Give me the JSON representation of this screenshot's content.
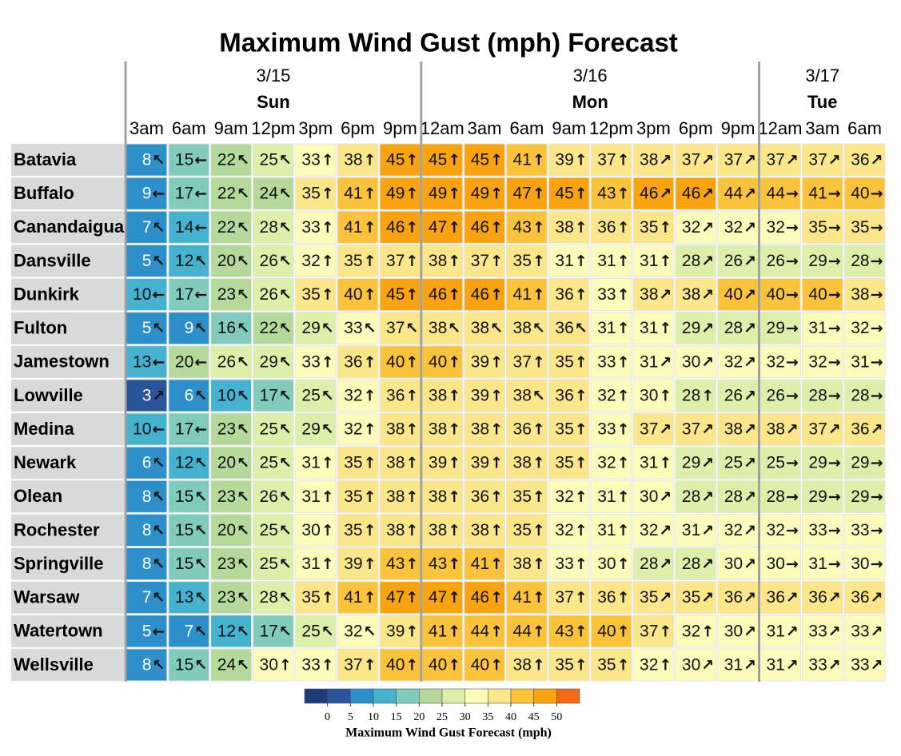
{
  "title": "Maximum Wind Gust (mph) Forecast",
  "days": [
    {
      "date": "3/15",
      "day": "Sun",
      "hours": [
        "3am",
        "6am",
        "9am",
        "12pm",
        "3pm",
        "6pm",
        "9pm"
      ]
    },
    {
      "date": "3/16",
      "day": "Mon",
      "hours": [
        "12am",
        "3am",
        "6am",
        "9am",
        "12pm",
        "3pm",
        "6pm",
        "9pm"
      ]
    },
    {
      "date": "3/17",
      "day": "Tue",
      "hours": [
        "12am",
        "3am",
        "6am"
      ]
    }
  ],
  "rows": [
    {
      "name": "Batavia",
      "values": [
        8,
        15,
        22,
        25,
        33,
        38,
        45,
        45,
        45,
        41,
        39,
        37,
        38,
        37,
        37,
        37,
        37,
        36
      ],
      "arrows": "↖←↖↖↑↑↑↑↑↑↑↑↗↗↗↗↗↗"
    },
    {
      "name": "Buffalo",
      "values": [
        9,
        17,
        22,
        24,
        35,
        41,
        49,
        49,
        49,
        47,
        45,
        43,
        46,
        46,
        44,
        44,
        41,
        40
      ],
      "arrows": "←←↖↖↑↑↑↑↑↑↑↑↗↗↗→→→"
    },
    {
      "name": "Canandaigua",
      "values": [
        7,
        14,
        22,
        28,
        33,
        41,
        46,
        47,
        46,
        43,
        38,
        36,
        35,
        32,
        32,
        32,
        35,
        35
      ],
      "arrows": "↖←↖↖↑↑↑↑↑↑↑↑↑↗↗→→→"
    },
    {
      "name": "Dansville",
      "values": [
        5,
        12,
        20,
        26,
        32,
        35,
        37,
        38,
        37,
        35,
        31,
        31,
        31,
        28,
        26,
        26,
        29,
        28
      ],
      "arrows": "↖↖↖↖↑↑↑↑↑↑↑↑↑↗↗→→→"
    },
    {
      "name": "Dunkirk",
      "values": [
        10,
        17,
        23,
        26,
        35,
        40,
        45,
        46,
        46,
        41,
        36,
        33,
        38,
        38,
        40,
        40,
        40,
        38
      ],
      "arrows": "←←↖↖↑↑↑↑↑↑↑↑↗↗↗→→→"
    },
    {
      "name": "Fulton",
      "values": [
        5,
        9,
        16,
        22,
        29,
        33,
        37,
        38,
        38,
        38,
        36,
        31,
        31,
        29,
        28,
        29,
        31,
        32
      ],
      "arrows": "↖↖↖↖↖↖↖↖↖↖↖↑↑↗↗→→→"
    },
    {
      "name": "Jamestown",
      "values": [
        13,
        20,
        26,
        29,
        33,
        36,
        40,
        40,
        39,
        37,
        35,
        33,
        31,
        30,
        32,
        32,
        32,
        31
      ],
      "arrows": "←←↖↖↑↑↑↑↑↑↑↑↗↗↗→→→"
    },
    {
      "name": "Lowville",
      "values": [
        3,
        6,
        10,
        17,
        25,
        32,
        36,
        38,
        39,
        38,
        36,
        32,
        30,
        28,
        26,
        26,
        28,
        28
      ],
      "arrows": "↗↖↖↖↖↑↑↑↑↖↑↑↑↑↗→→→"
    },
    {
      "name": "Medina",
      "values": [
        10,
        17,
        23,
        25,
        29,
        32,
        38,
        38,
        38,
        36,
        35,
        33,
        37,
        37,
        38,
        38,
        37,
        36
      ],
      "arrows": "←←↖↖↖↑↑↑↑↑↑↑↗↗↗↗↗↗"
    },
    {
      "name": "Newark",
      "values": [
        6,
        12,
        20,
        25,
        31,
        35,
        38,
        39,
        39,
        38,
        35,
        32,
        31,
        29,
        25,
        25,
        29,
        29
      ],
      "arrows": "↖↖↖↖↑↑↑↑↑↑↑↑↑↗↗→→→"
    },
    {
      "name": "Olean",
      "values": [
        8,
        15,
        23,
        26,
        31,
        35,
        38,
        38,
        36,
        35,
        32,
        31,
        30,
        28,
        28,
        28,
        29,
        29
      ],
      "arrows": "↖↖↖↖↑↑↑↑↑↑↑↑↗↗↗→→→"
    },
    {
      "name": "Rochester",
      "values": [
        8,
        15,
        20,
        25,
        30,
        35,
        38,
        38,
        38,
        35,
        32,
        31,
        32,
        31,
        32,
        32,
        33,
        33
      ],
      "arrows": "↖↖↖↖↑↑↑↑↑↑↑↑↗↗↗→→→"
    },
    {
      "name": "Springville",
      "values": [
        8,
        15,
        23,
        25,
        31,
        39,
        43,
        43,
        41,
        38,
        33,
        30,
        28,
        28,
        30,
        30,
        31,
        30
      ],
      "arrows": "↖↖↖↖↑↑↑↑↑↑↑↑↗↗↗→→→"
    },
    {
      "name": "Warsaw",
      "values": [
        7,
        13,
        23,
        28,
        35,
        41,
        47,
        47,
        46,
        41,
        37,
        36,
        35,
        35,
        36,
        36,
        36,
        36
      ],
      "arrows": "↖↖↖↖↑↑↑↑↑↑↑↑↗↗↗↗↗↗"
    },
    {
      "name": "Watertown",
      "values": [
        5,
        7,
        12,
        17,
        25,
        32,
        39,
        41,
        44,
        44,
        43,
        40,
        37,
        32,
        30,
        31,
        33,
        33
      ],
      "arrows": "←↖↖↖↖↖↑↑↑↑↑↑↑↑↗↗↗↗"
    },
    {
      "name": "Wellsville",
      "values": [
        8,
        15,
        24,
        30,
        33,
        37,
        40,
        40,
        40,
        38,
        35,
        35,
        32,
        30,
        31,
        31,
        33,
        33
      ],
      "arrows": "↖↖↖↑↑↑↑↑↑↑↑↑↑↗↗↗↗↗"
    }
  ],
  "legend": {
    "title": "Maximum Wind Gust Forecast (mph)",
    "ticks": [
      0,
      5,
      10,
      15,
      20,
      25,
      30,
      35,
      40,
      45,
      50
    ],
    "colors": [
      "#1d3c78",
      "#2a559b",
      "#2c8fc9",
      "#45b2d0",
      "#80cbbc",
      "#b5d99b",
      "#ddf0aa",
      "#fcfbba",
      "#fbe68a",
      "#fbc33a",
      "#f8a30f",
      "#f46a14"
    ]
  }
}
